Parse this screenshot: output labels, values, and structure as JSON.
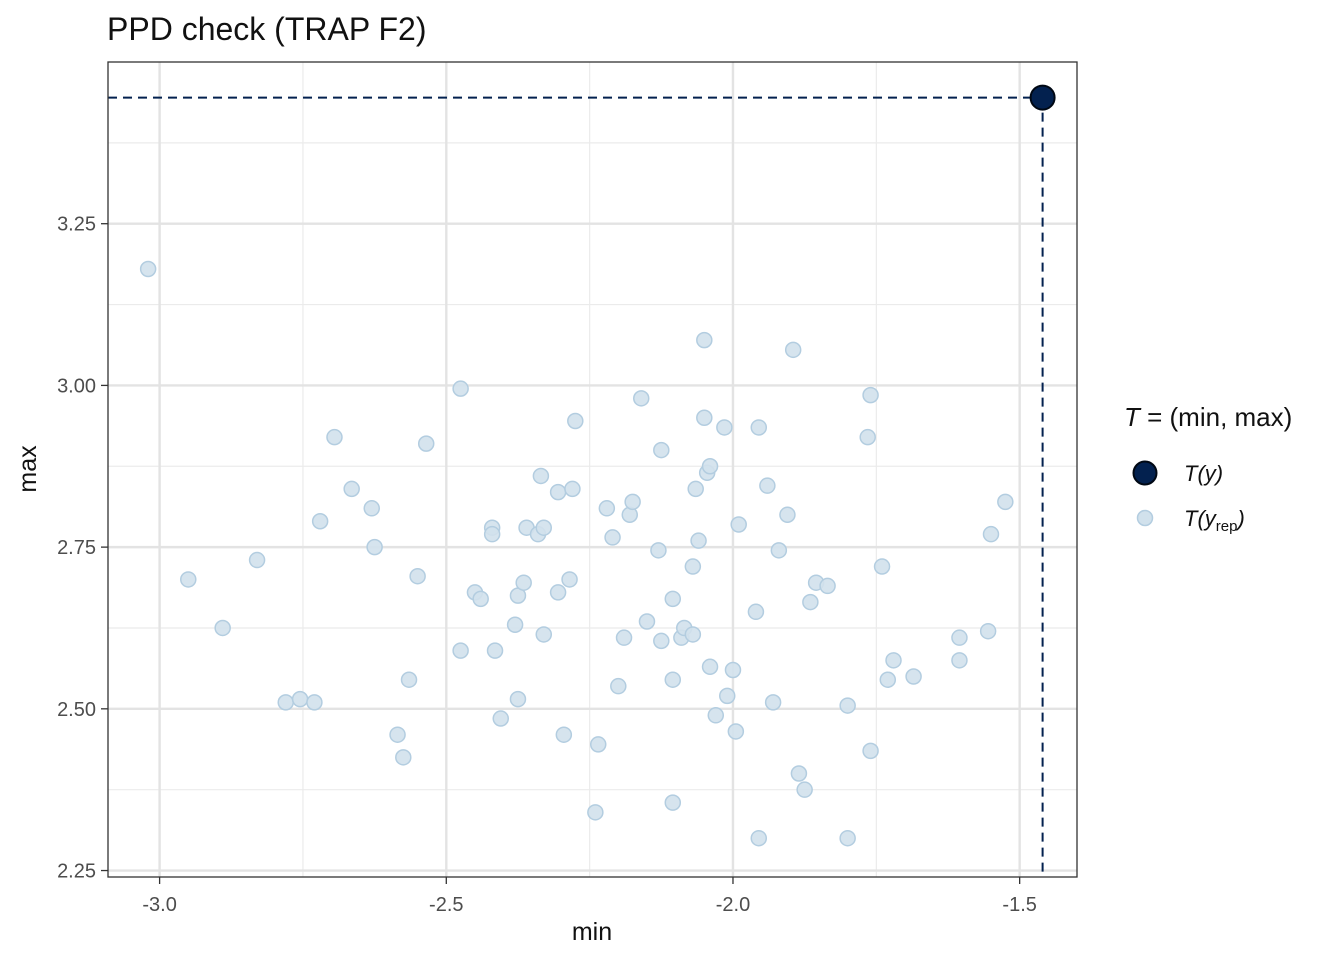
{
  "chart_data": {
    "type": "scatter",
    "title": "PPD check (TRAP F2)",
    "xlabel": "min",
    "ylabel": "max",
    "xlim": [
      -3.09,
      -1.4
    ],
    "ylim": [
      2.24,
      3.5
    ],
    "x_ticks": [
      -3.0,
      -2.5,
      -2.0,
      -1.5
    ],
    "x_tick_labels": [
      "-3.0",
      "-2.5",
      "-2.0",
      "-1.5"
    ],
    "y_ticks": [
      2.25,
      2.5,
      2.75,
      3.0,
      3.25
    ],
    "y_tick_labels": [
      "2.25",
      "2.50",
      "2.75",
      "3.00",
      "3.25"
    ],
    "grid": true,
    "legend_position": "right",
    "legend": {
      "title_T": "T",
      "title_rest": " = (min, max)",
      "items": [
        {
          "key": "y",
          "main": "T(y)",
          "sub": ""
        },
        {
          "key": "yrep",
          "main": "T(y",
          "sub": "rep",
          "close": ")"
        }
      ]
    },
    "colors": {
      "observed": "#03214f",
      "replicated_fill": "#d1e1ec",
      "replicated_stroke": "#b3cde0",
      "reference_line": "#03214f"
    },
    "series": [
      {
        "name": "T(y)",
        "role": "observed",
        "points": [
          [
            -1.46,
            3.445
          ]
        ]
      },
      {
        "name": "T(y_rep)",
        "role": "replicated",
        "points": [
          [
            -3.02,
            3.18
          ],
          [
            -2.95,
            2.7
          ],
          [
            -2.89,
            2.625
          ],
          [
            -2.83,
            2.73
          ],
          [
            -2.78,
            2.51
          ],
          [
            -2.755,
            2.515
          ],
          [
            -2.73,
            2.51
          ],
          [
            -2.72,
            2.79
          ],
          [
            -2.695,
            2.92
          ],
          [
            -2.665,
            2.84
          ],
          [
            -2.63,
            2.81
          ],
          [
            -2.625,
            2.75
          ],
          [
            -2.585,
            2.46
          ],
          [
            -2.575,
            2.425
          ],
          [
            -2.565,
            2.545
          ],
          [
            -2.55,
            2.705
          ],
          [
            -2.535,
            2.91
          ],
          [
            -2.475,
            2.995
          ],
          [
            -2.475,
            2.59
          ],
          [
            -2.45,
            2.68
          ],
          [
            -2.44,
            2.67
          ],
          [
            -2.42,
            2.78
          ],
          [
            -2.42,
            2.77
          ],
          [
            -2.415,
            2.59
          ],
          [
            -2.405,
            2.485
          ],
          [
            -2.38,
            2.63
          ],
          [
            -2.375,
            2.675
          ],
          [
            -2.375,
            2.515
          ],
          [
            -2.365,
            2.695
          ],
          [
            -2.36,
            2.78
          ],
          [
            -2.34,
            2.77
          ],
          [
            -2.335,
            2.86
          ],
          [
            -2.33,
            2.78
          ],
          [
            -2.33,
            2.615
          ],
          [
            -2.305,
            2.68
          ],
          [
            -2.305,
            2.835
          ],
          [
            -2.295,
            2.46
          ],
          [
            -2.285,
            2.7
          ],
          [
            -2.28,
            2.84
          ],
          [
            -2.275,
            2.945
          ],
          [
            -2.24,
            2.34
          ],
          [
            -2.235,
            2.445
          ],
          [
            -2.22,
            2.81
          ],
          [
            -2.21,
            2.765
          ],
          [
            -2.2,
            2.535
          ],
          [
            -2.19,
            2.61
          ],
          [
            -2.18,
            2.8
          ],
          [
            -2.175,
            2.82
          ],
          [
            -2.16,
            2.98
          ],
          [
            -2.15,
            2.635
          ],
          [
            -2.13,
            2.745
          ],
          [
            -2.125,
            2.9
          ],
          [
            -2.125,
            2.605
          ],
          [
            -2.105,
            2.545
          ],
          [
            -2.105,
            2.67
          ],
          [
            -2.105,
            2.355
          ],
          [
            -2.09,
            2.61
          ],
          [
            -2.085,
            2.625
          ],
          [
            -2.07,
            2.72
          ],
          [
            -2.07,
            2.615
          ],
          [
            -2.065,
            2.84
          ],
          [
            -2.06,
            2.76
          ],
          [
            -2.05,
            3.07
          ],
          [
            -2.05,
            2.95
          ],
          [
            -2.045,
            2.865
          ],
          [
            -2.04,
            2.875
          ],
          [
            -2.04,
            2.565
          ],
          [
            -2.03,
            2.49
          ],
          [
            -2.015,
            2.935
          ],
          [
            -2.01,
            2.52
          ],
          [
            -2.0,
            2.56
          ],
          [
            -1.995,
            2.465
          ],
          [
            -1.99,
            2.785
          ],
          [
            -1.96,
            2.65
          ],
          [
            -1.955,
            2.935
          ],
          [
            -1.955,
            2.3
          ],
          [
            -1.94,
            2.845
          ],
          [
            -1.93,
            2.51
          ],
          [
            -1.92,
            2.745
          ],
          [
            -1.905,
            2.8
          ],
          [
            -1.895,
            3.055
          ],
          [
            -1.885,
            2.4
          ],
          [
            -1.875,
            2.375
          ],
          [
            -1.865,
            2.665
          ],
          [
            -1.855,
            2.695
          ],
          [
            -1.835,
            2.69
          ],
          [
            -1.8,
            2.505
          ],
          [
            -1.8,
            2.3
          ],
          [
            -1.765,
            2.92
          ],
          [
            -1.76,
            2.985
          ],
          [
            -1.76,
            2.435
          ],
          [
            -1.74,
            2.72
          ],
          [
            -1.73,
            2.545
          ],
          [
            -1.72,
            2.575
          ],
          [
            -1.685,
            2.55
          ],
          [
            -1.605,
            2.61
          ],
          [
            -1.605,
            2.575
          ],
          [
            -1.555,
            2.62
          ],
          [
            -1.55,
            2.77
          ],
          [
            -1.525,
            2.82
          ]
        ]
      }
    ],
    "reference_lines": {
      "style": "dashed",
      "x": -1.46,
      "y": 3.445
    }
  }
}
